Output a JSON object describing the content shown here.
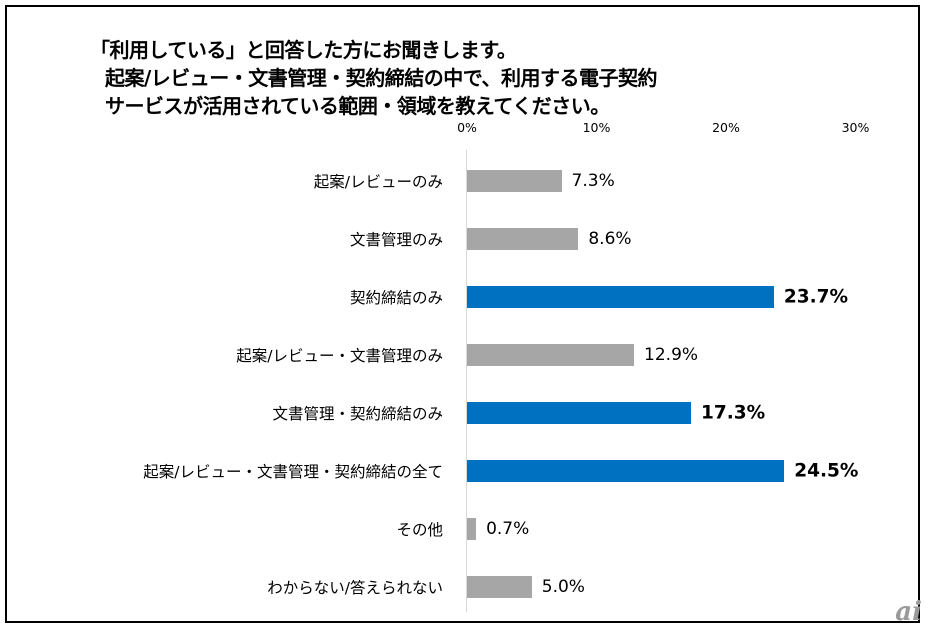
{
  "chart_data": {
    "type": "bar",
    "orientation": "horizontal",
    "title_lines": [
      "「利用している」と回答した方にお聞きします。",
      "起案/レビュー・文書管理・契約締結の中で、利用する電子契約",
      "サービスが活用されている範囲・領域を教えてください。"
    ],
    "categories": [
      "起案/レビューのみ",
      "文書管理のみ",
      "契約締結のみ",
      "起案/レビュー・文書管理のみ",
      "文書管理・契約締結のみ",
      "起案/レビュー・文書管理・契約締結の全て",
      "その他",
      "わからない/答えられない"
    ],
    "values": [
      7.3,
      8.6,
      23.7,
      12.9,
      17.3,
      24.5,
      0.7,
      5.0
    ],
    "value_labels": [
      "7.3%",
      "8.6%",
      "23.7%",
      "12.9%",
      "17.3%",
      "24.5%",
      "0.7%",
      "5.0%"
    ],
    "highlighted": [
      false,
      false,
      true,
      false,
      true,
      true,
      false,
      false
    ],
    "xlim": [
      0,
      30
    ],
    "x_ticks": [
      "0%",
      "10%",
      "20%",
      "30%"
    ],
    "x_tick_values": [
      0,
      10,
      20,
      30
    ],
    "colors": {
      "normal": "#a6a6a6",
      "highlight": "#0070c0"
    },
    "grid": false
  },
  "watermark": "ai"
}
